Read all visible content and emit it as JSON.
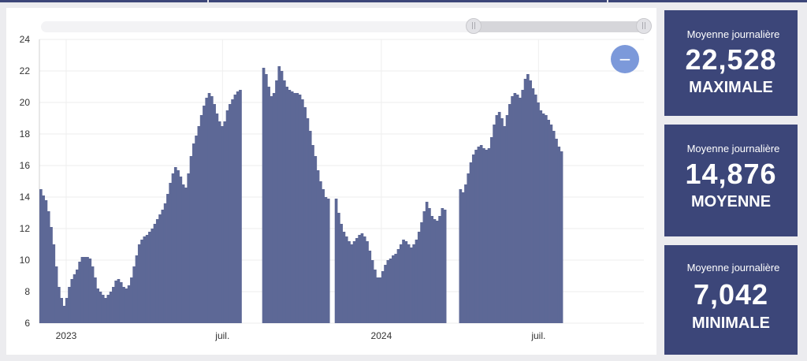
{
  "cards": [
    {
      "label": "Moyenne journalière",
      "value": "22,528",
      "caption": "MAXIMALE"
    },
    {
      "label": "Moyenne journalière",
      "value": "14,876",
      "caption": "MOYENNE"
    },
    {
      "label": "Moyenne journalière",
      "value": "7,042",
      "caption": "MINIMALE"
    }
  ],
  "colors": {
    "bar": "#5d6896",
    "card_bg": "#3c4679",
    "zoom_button": "#7c99da"
  },
  "icons": {
    "zoom_out": "minus-icon",
    "slider_handle": "grip-icon"
  },
  "chart_data": {
    "type": "bar",
    "title": "",
    "xlabel": "",
    "ylabel": "",
    "ylim": [
      6,
      24
    ],
    "yticks": [
      6,
      8,
      10,
      12,
      14,
      16,
      18,
      20,
      22,
      24
    ],
    "xlim": [
      "2022-12-01",
      "2024-10-31"
    ],
    "xticks": [
      {
        "label": "2023",
        "date": "2023-01-01"
      },
      {
        "label": "juil.",
        "date": "2023-07-01"
      },
      {
        "label": "2024",
        "date": "2024-01-01"
      },
      {
        "label": "juil.",
        "date": "2024-07-01"
      }
    ],
    "grid": true,
    "zoom_range": {
      "start": "2024-04-07",
      "end": "2024-10-31"
    },
    "series": [
      {
        "start_date": "2022-12-01",
        "interval_days": 3,
        "values": [
          14.5,
          14.1,
          13.8,
          13.1,
          12.1,
          11.0,
          9.6,
          8.3,
          7.6,
          7.1,
          7.6,
          8.3,
          8.8,
          9.1,
          9.4,
          9.9,
          10.2,
          10.2,
          10.2,
          10.1,
          9.6,
          8.9,
          8.2,
          8.0,
          7.8,
          7.6,
          7.8,
          8.0,
          8.3,
          8.7,
          8.8,
          8.6,
          8.3,
          8.2,
          8.4,
          8.9,
          9.6,
          10.3,
          11.0,
          11.3,
          11.5,
          11.6,
          11.8,
          12.0,
          12.3,
          12.6,
          12.9,
          13.2,
          13.6,
          14.2,
          14.9,
          15.5,
          15.9,
          15.7,
          15.3,
          14.8,
          14.6,
          15.5,
          16.6,
          17.4,
          17.9,
          18.5,
          19.2,
          19.8,
          20.3,
          20.6,
          20.4,
          19.9,
          19.3,
          18.8,
          18.5,
          18.8,
          19.5,
          19.9,
          20.2,
          20.5,
          20.7,
          20.8,
          null,
          null,
          null,
          null,
          null,
          null,
          null,
          null,
          22.2,
          21.8,
          21.0,
          20.4,
          20.6,
          21.4,
          22.3,
          22.0,
          21.4,
          21.0,
          20.8,
          20.7,
          20.6,
          20.6,
          20.5,
          20.2,
          19.7,
          19.0,
          18.2,
          17.3,
          16.6,
          15.7,
          15.0,
          14.5,
          14.0,
          13.9,
          null,
          null,
          13.9,
          13.0,
          12.3,
          11.8,
          11.5,
          11.2,
          11.0,
          11.2,
          11.4,
          11.6,
          11.7,
          11.5,
          11.2,
          10.6,
          10.0,
          9.4,
          8.9,
          8.9,
          9.3,
          9.7,
          10.0,
          10.1,
          10.3,
          10.4,
          10.7,
          11.0,
          11.3,
          11.2,
          11.0,
          10.8,
          11.0,
          11.3,
          11.8,
          12.4,
          13.1,
          13.7,
          13.3,
          12.8,
          12.6,
          12.5,
          12.8,
          13.3,
          13.2,
          null,
          null,
          null,
          null,
          null,
          14.5,
          14.3,
          14.8,
          15.5,
          16.2,
          16.7,
          17.0,
          17.2,
          17.3,
          17.1,
          17.0,
          17.1,
          17.8,
          18.6,
          19.2,
          19.4,
          19.0,
          18.5,
          19.2,
          19.9,
          20.4,
          20.6,
          20.5,
          20.3,
          20.8,
          21.5,
          21.8,
          21.4,
          20.9,
          20.5,
          20.0,
          19.5,
          19.3,
          19.2,
          18.9,
          18.6,
          18.2,
          17.7,
          17.2,
          16.9
        ]
      }
    ]
  }
}
